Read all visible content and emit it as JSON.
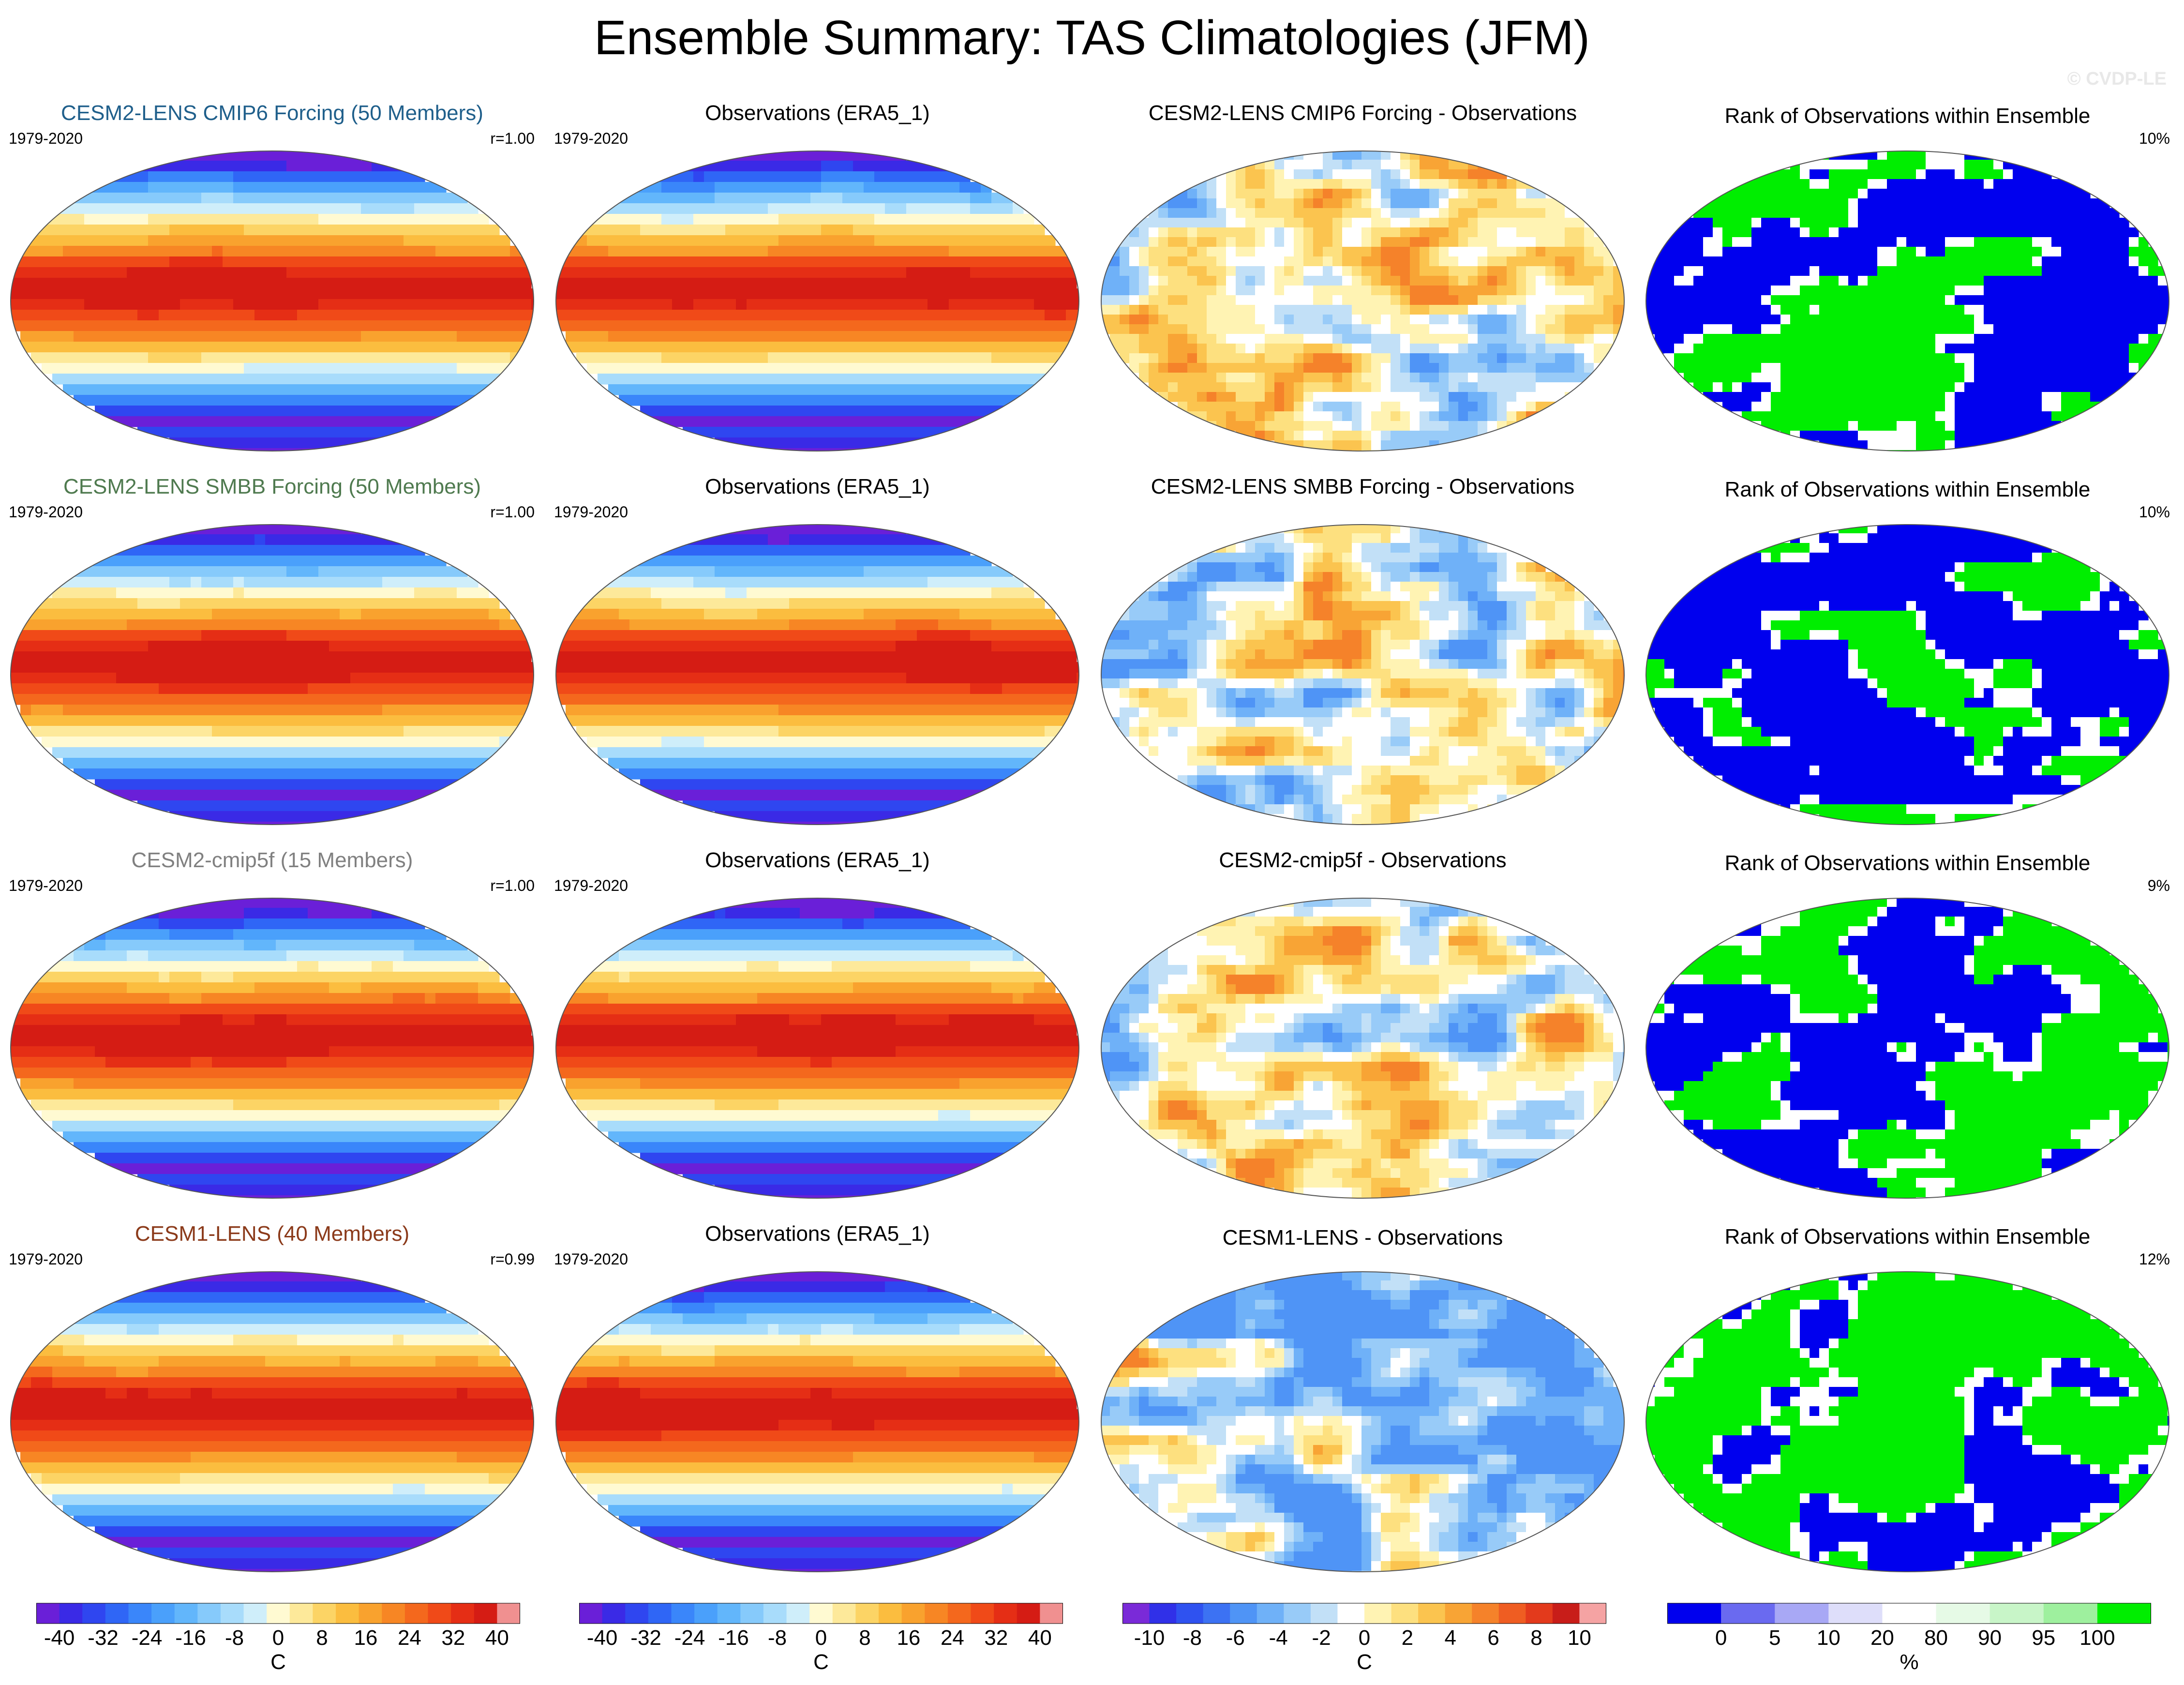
{
  "title": "Ensemble Summary: TAS Climatologies (JFM)",
  "watermark": "© CVDP-LE",
  "colors": {
    "climatology": [
      "#6a1fd8",
      "#3a2ae6",
      "#2f46f0",
      "#2f66f6",
      "#3a86fa",
      "#4aa0fb",
      "#62b6fb",
      "#86cafb",
      "#a8dcfb",
      "#cfeefa",
      "#fffad2",
      "#fde99a",
      "#fcd465",
      "#fbbd3f",
      "#f9a22e",
      "#f78624",
      "#f4681d",
      "#f04a18",
      "#e52e15",
      "#d51c14",
      "#f09090"
    ],
    "difference": [
      "#7a2ad8",
      "#3030e8",
      "#2f52f0",
      "#3c72f3",
      "#4f94f6",
      "#6fb1f8",
      "#98cbf8",
      "#c2e0f7",
      "#ffffff",
      "#fff3b3",
      "#fde07f",
      "#fbc44f",
      "#f8a435",
      "#f5822a",
      "#ef5d22",
      "#e33a1c",
      "#c81d19",
      "#f5a3a3"
    ],
    "rank": [
      "#0000ee",
      "#6a6af0",
      "#a8a8f5",
      "#dedefa",
      "#ffffff",
      "#e6fae6",
      "#c8f5c8",
      "#9ef09e",
      "#00ee00"
    ]
  },
  "rows": [
    {
      "model_title": "CESM2-LENS CMIP6 Forcing (50 Members)",
      "model_title_color": "#1f5f8b",
      "years": "1979-2020",
      "pattern_corr": "r=1.00",
      "obs_title": "Observations (ERA5_1)",
      "obs_years": "1979-2020",
      "diff_title": "CESM2-LENS CMIP6 Forcing - Observations",
      "rank_title": "Rank of Observations within Ensemble",
      "rank_stat": "10%"
    },
    {
      "model_title": "CESM2-LENS SMBB Forcing (50 Members)",
      "model_title_color": "#4f7a4f",
      "years": "1979-2020",
      "pattern_corr": "r=1.00",
      "obs_title": "Observations (ERA5_1)",
      "obs_years": "1979-2020",
      "diff_title": "CESM2-LENS SMBB Forcing - Observations",
      "rank_title": "Rank of Observations within Ensemble",
      "rank_stat": "10%"
    },
    {
      "model_title": "CESM2-cmip5f (15 Members)",
      "model_title_color": "#808080",
      "years": "1979-2020",
      "pattern_corr": "r=1.00",
      "obs_title": "Observations (ERA5_1)",
      "obs_years": "1979-2020",
      "diff_title": "CESM2-cmip5f - Observations",
      "rank_title": "Rank of Observations within Ensemble",
      "rank_stat": "9%"
    },
    {
      "model_title": "CESM1-LENS (40 Members)",
      "model_title_color": "#8b3a1a",
      "years": "1979-2020",
      "pattern_corr": "r=0.99",
      "obs_title": "Observations (ERA5_1)",
      "obs_years": "1979-2020",
      "diff_title": "CESM1-LENS - Observations",
      "rank_title": "Rank of Observations within Ensemble",
      "rank_stat": "12%"
    }
  ],
  "colorbars": [
    {
      "units": "C",
      "labels": [
        "-40",
        "-32",
        "-24",
        "-16",
        "-8",
        "0",
        "8",
        "16",
        "24",
        "32",
        "40"
      ]
    },
    {
      "units": "C",
      "labels": [
        "-40",
        "-32",
        "-24",
        "-16",
        "-8",
        "0",
        "8",
        "16",
        "24",
        "32",
        "40"
      ]
    },
    {
      "units": "C",
      "labels": [
        "-10",
        "-8",
        "-6",
        "-4",
        "-2",
        "0",
        "2",
        "4",
        "6",
        "8",
        "10"
      ]
    },
    {
      "units": "%",
      "labels": [
        "0",
        "5",
        "10",
        "20",
        "80",
        "90",
        "95",
        "100"
      ]
    }
  ]
}
